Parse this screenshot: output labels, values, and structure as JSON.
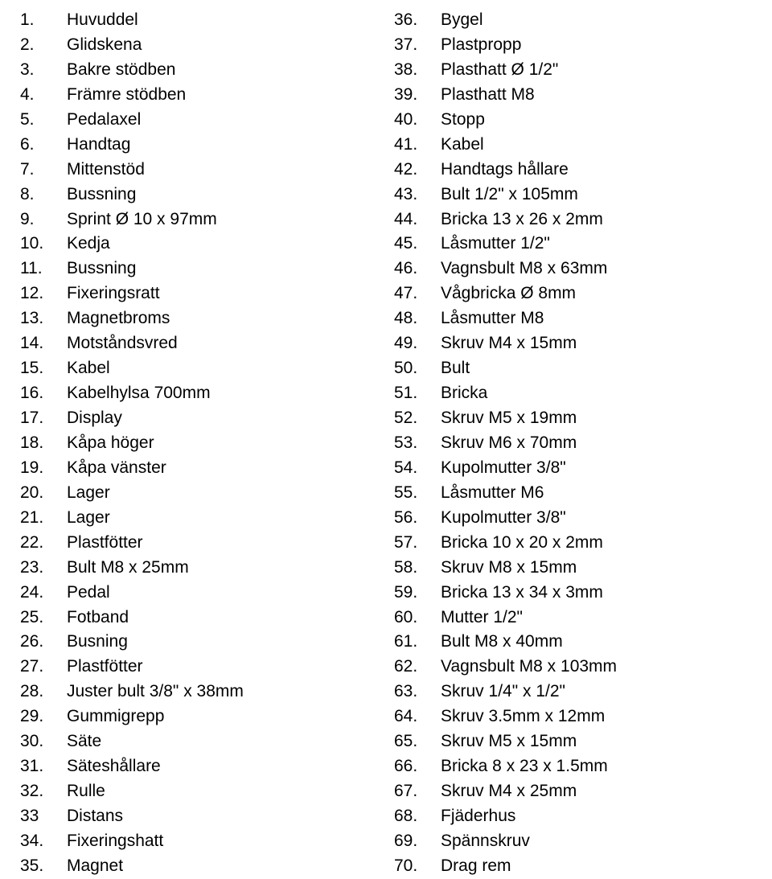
{
  "columns": [
    {
      "items": [
        {
          "num": "1.",
          "label": "Huvuddel"
        },
        {
          "num": "2.",
          "label": "Glidskena"
        },
        {
          "num": "3.",
          "label": "Bakre stödben"
        },
        {
          "num": "4.",
          "label": "Främre stödben"
        },
        {
          "num": "5.",
          "label": "Pedalaxel"
        },
        {
          "num": "6.",
          "label": "Handtag"
        },
        {
          "num": "7.",
          "label": "Mittenstöd"
        },
        {
          "num": "8.",
          "label": "Bussning"
        },
        {
          "num": "9.",
          "label": "Sprint Ø 10 x 97mm"
        },
        {
          "num": "10.",
          "label": "Kedja"
        },
        {
          "num": "11.",
          "label": "Bussning"
        },
        {
          "num": "12.",
          "label": "Fixeringsratt"
        },
        {
          "num": "13.",
          "label": "Magnetbroms"
        },
        {
          "num": "14.",
          "label": "Motståndsvred"
        },
        {
          "num": "15.",
          "label": "Kabel"
        },
        {
          "num": "16.",
          "label": "Kabelhylsa 700mm"
        },
        {
          "num": "17.",
          "label": "Display"
        },
        {
          "num": "18.",
          "label": "Kåpa höger"
        },
        {
          "num": "19.",
          "label": "Kåpa vänster"
        },
        {
          "num": "20.",
          "label": "Lager"
        },
        {
          "num": "21.",
          "label": "Lager"
        },
        {
          "num": "22.",
          "label": "Plastfötter"
        },
        {
          "num": "23.",
          "label": "Bult M8 x 25mm"
        },
        {
          "num": "24.",
          "label": "Pedal"
        },
        {
          "num": "25.",
          "label": "Fotband"
        },
        {
          "num": "26.",
          "label": "Busning"
        },
        {
          "num": "27.",
          "label": "Plastfötter"
        },
        {
          "num": "28.",
          "label": "Juster bult 3/8\" x 38mm"
        },
        {
          "num": "29.",
          "label": "Gummigrepp"
        },
        {
          "num": "30.",
          "label": "Säte"
        },
        {
          "num": "31.",
          "label": "Säteshållare"
        },
        {
          "num": "32.",
          "label": "Rulle"
        },
        {
          "num": "33",
          "label": "Distans"
        },
        {
          "num": "34.",
          "label": "Fixeringshatt"
        },
        {
          "num": "35.",
          "label": "Magnet"
        }
      ]
    },
    {
      "items": [
        {
          "num": "36.",
          "label": "Bygel"
        },
        {
          "num": "37.",
          "label": "Plastpropp"
        },
        {
          "num": "38.",
          "label": "Plasthatt Ø 1/2\""
        },
        {
          "num": "39.",
          "label": "Plasthatt M8"
        },
        {
          "num": "40.",
          "label": "Stopp"
        },
        {
          "num": "41.",
          "label": "Kabel"
        },
        {
          "num": "42.",
          "label": "Handtags hållare"
        },
        {
          "num": "43.",
          "label": "Bult  1/2\" x 105mm"
        },
        {
          "num": "44.",
          "label": "Bricka  13 x 26 x 2mm"
        },
        {
          "num": "45.",
          "label": "Låsmutter  1/2\""
        },
        {
          "num": "46.",
          "label": "Vagnsbult  M8 x 63mm"
        },
        {
          "num": "47.",
          "label": "Vågbricka  Ø 8mm"
        },
        {
          "num": "48.",
          "label": "Låsmutter M8"
        },
        {
          "num": "49.",
          "label": "Skruv M4 x 15mm"
        },
        {
          "num": "50.",
          "label": "Bult"
        },
        {
          "num": "51.",
          "label": "Bricka"
        },
        {
          "num": "52.",
          "label": "Skruv M5 x 19mm"
        },
        {
          "num": "53.",
          "label": "Skruv M6 x 70mm"
        },
        {
          "num": "54.",
          "label": "Kupolmutter 3/8\""
        },
        {
          "num": "55.",
          "label": "Låsmutter M6"
        },
        {
          "num": "56.",
          "label": "Kupolmutter 3/8\""
        },
        {
          "num": "57.",
          "label": "Bricka 10 x 20 x 2mm"
        },
        {
          "num": "58.",
          "label": "Skruv M8 x 15mm"
        },
        {
          "num": "59.",
          "label": "Bricka 13 x 34 x 3mm"
        },
        {
          "num": "60.",
          "label": "Mutter 1/2\""
        },
        {
          "num": "61.",
          "label": "Bult M8 x 40mm"
        },
        {
          "num": "62.",
          "label": "Vagnsbult M8 x 103mm"
        },
        {
          "num": "63.",
          "label": "Skruv 1/4\" x 1/2\""
        },
        {
          "num": "64.",
          "label": "Skruv 3.5mm x 12mm"
        },
        {
          "num": "65.",
          "label": "Skruv M5 x 15mm"
        },
        {
          "num": "66.",
          "label": "Bricka 8 x 23 x 1.5mm"
        },
        {
          "num": "67.",
          "label": "Skruv M4 x 25mm"
        },
        {
          "num": "68.",
          "label": "Fjäderhus"
        },
        {
          "num": "69.",
          "label": "Spännskruv"
        },
        {
          "num": "70.",
          "label": "Drag rem"
        }
      ]
    }
  ]
}
